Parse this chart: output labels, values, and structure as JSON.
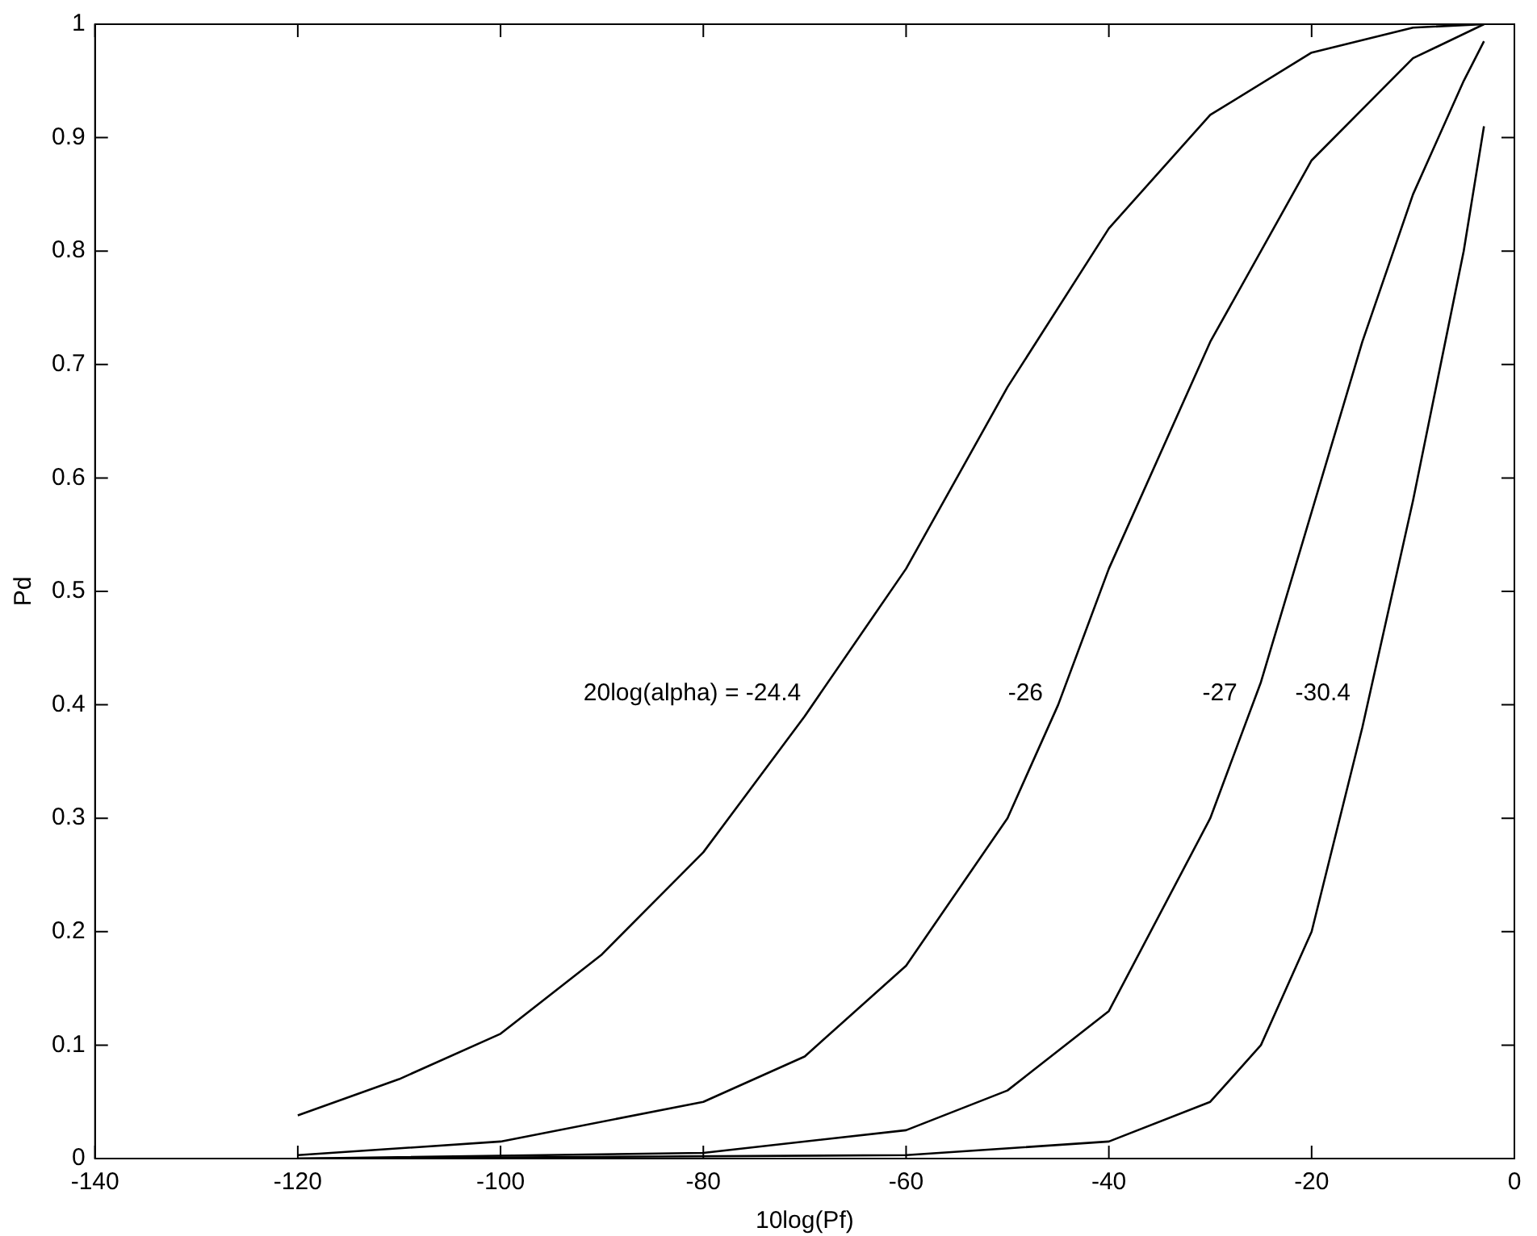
{
  "chart_data": {
    "type": "line",
    "xlabel": "10log(Pf)",
    "ylabel": "Pd",
    "xlim": [
      -140,
      0
    ],
    "xticks": [
      -140,
      -120,
      -100,
      -80,
      -60,
      -40,
      -20,
      0
    ],
    "ylim": [
      0,
      1
    ],
    "yticks": [
      0,
      0.1,
      0.2,
      0.3,
      0.4,
      0.5,
      0.6,
      0.7,
      0.8,
      0.9,
      1
    ],
    "grid": false,
    "legend": false,
    "marker": "none",
    "line_style": "solid",
    "series": [
      {
        "color": "#000000",
        "x": [
          -120,
          -110,
          -100,
          -90,
          -80,
          -70,
          -60,
          -50,
          -40,
          -30,
          -20,
          -10,
          -3
        ],
        "values": [
          0.038,
          0.07,
          0.11,
          0.18,
          0.27,
          0.39,
          0.52,
          0.68,
          0.82,
          0.92,
          0.975,
          0.997,
          1.0
        ]
      },
      {
        "color": "#000000",
        "x": [
          -120,
          -100,
          -80,
          -70,
          -60,
          -50,
          -45,
          -40,
          -30,
          -20,
          -10,
          -3
        ],
        "values": [
          0.003,
          0.015,
          0.05,
          0.09,
          0.17,
          0.3,
          0.4,
          0.52,
          0.72,
          0.88,
          0.97,
          1.0
        ]
      },
      {
        "color": "#000000",
        "x": [
          -120,
          -80,
          -60,
          -50,
          -40,
          -30,
          -25,
          -20,
          -15,
          -10,
          -5,
          -3
        ],
        "values": [
          0,
          0.005,
          0.025,
          0.06,
          0.13,
          0.3,
          0.42,
          0.57,
          0.72,
          0.85,
          0.95,
          0.985
        ]
      },
      {
        "color": "#000000",
        "x": [
          -120,
          -60,
          -40,
          -30,
          -25,
          -20,
          -15,
          -10,
          -5,
          -3
        ],
        "values": [
          0,
          0.003,
          0.015,
          0.05,
          0.1,
          0.2,
          0.38,
          0.58,
          0.8,
          0.91
        ]
      }
    ],
    "annotations": [
      "20log(alpha) = -24.4",
      "-26",
      "-27",
      "-30.4"
    ]
  }
}
